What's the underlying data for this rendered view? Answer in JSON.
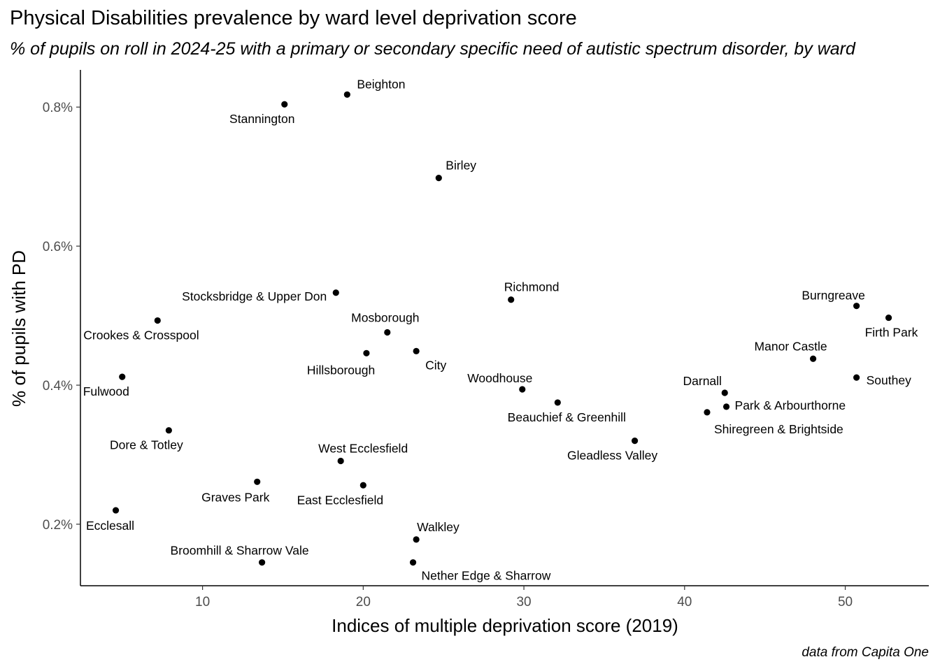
{
  "chart_data": {
    "type": "scatter",
    "title": "Physical Disabilities prevalence by ward level deprivation score",
    "subtitle": "% of pupils on roll in 2024-25 with a primary or secondary specific need of autistic spectrum disorder, by ward",
    "caption": "data from Capita One",
    "xlabel": "Indices of multiple deprivation score (2019)",
    "ylabel": "% of pupils with PD",
    "xlim": [
      2.4,
      55.2
    ],
    "ylim": [
      0.1115,
      0.8535
    ],
    "x_ticks": [
      10,
      20,
      30,
      40,
      50
    ],
    "y_ticks": [
      0.2,
      0.4,
      0.6,
      0.8
    ],
    "y_tick_labels": [
      "0.2%",
      "0.4%",
      "0.6%",
      "0.8%"
    ],
    "grid": false,
    "points": [
      {
        "name": "Beighton",
        "x": 19.0,
        "y": 0.818
      },
      {
        "name": "Stannington",
        "x": 15.1,
        "y": 0.804
      },
      {
        "name": "Birley",
        "x": 24.7,
        "y": 0.698
      },
      {
        "name": "Stocksbridge & Upper Don",
        "x": 18.3,
        "y": 0.533
      },
      {
        "name": "Richmond",
        "x": 29.2,
        "y": 0.523
      },
      {
        "name": "Burngreave",
        "x": 50.7,
        "y": 0.514
      },
      {
        "name": "Firth Park",
        "x": 52.7,
        "y": 0.497
      },
      {
        "name": "Crookes & Crosspool",
        "x": 7.2,
        "y": 0.493
      },
      {
        "name": "Mosborough",
        "x": 21.5,
        "y": 0.476
      },
      {
        "name": "City",
        "x": 23.3,
        "y": 0.449
      },
      {
        "name": "Hillsborough",
        "x": 20.2,
        "y": 0.446
      },
      {
        "name": "Manor Castle",
        "x": 48.0,
        "y": 0.438
      },
      {
        "name": "Fulwood",
        "x": 5.0,
        "y": 0.412
      },
      {
        "name": "Southey",
        "x": 50.7,
        "y": 0.411
      },
      {
        "name": "Woodhouse",
        "x": 29.9,
        "y": 0.394
      },
      {
        "name": "Darnall",
        "x": 42.5,
        "y": 0.389
      },
      {
        "name": "Beauchief & Greenhill",
        "x": 32.1,
        "y": 0.375
      },
      {
        "name": "Park & Arbourthorne",
        "x": 42.6,
        "y": 0.369
      },
      {
        "name": "Shiregreen & Brightside",
        "x": 41.4,
        "y": 0.361
      },
      {
        "name": "Dore & Totley",
        "x": 7.9,
        "y": 0.335
      },
      {
        "name": "Gleadless Valley",
        "x": 36.9,
        "y": 0.32
      },
      {
        "name": "West Ecclesfield",
        "x": 18.6,
        "y": 0.291
      },
      {
        "name": "Graves Park",
        "x": 13.4,
        "y": 0.261
      },
      {
        "name": "East Ecclesfield",
        "x": 20.0,
        "y": 0.256
      },
      {
        "name": "Ecclesall",
        "x": 4.6,
        "y": 0.22
      },
      {
        "name": "Walkley",
        "x": 23.3,
        "y": 0.178
      },
      {
        "name": "Broomhill & Sharrow Vale",
        "x": 13.7,
        "y": 0.145
      },
      {
        "name": "Nether Edge & Sharrow",
        "x": 23.1,
        "y": 0.145
      }
    ]
  }
}
